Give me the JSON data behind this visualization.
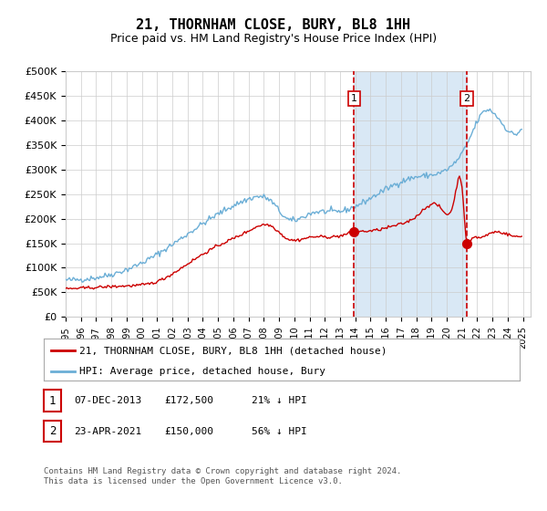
{
  "title": "21, THORNHAM CLOSE, BURY, BL8 1HH",
  "subtitle": "Price paid vs. HM Land Registry's House Price Index (HPI)",
  "legend_line1": "21, THORNHAM CLOSE, BURY, BL8 1HH (detached house)",
  "legend_line2": "HPI: Average price, detached house, Bury",
  "annotation1_label": "1",
  "annotation1_date": "07-DEC-2013",
  "annotation1_price": "£172,500",
  "annotation1_pct": "21% ↓ HPI",
  "annotation2_label": "2",
  "annotation2_date": "23-APR-2021",
  "annotation2_price": "£150,000",
  "annotation2_pct": "56% ↓ HPI",
  "footer": "Contains HM Land Registry data © Crown copyright and database right 2024.\nThis data is licensed under the Open Government Licence v3.0.",
  "hpi_color": "#6baed6",
  "price_color": "#cc0000",
  "dashed_line_color": "#cc0000",
  "shade_color": "#d9e8f5",
  "background_color": "#ffffff",
  "grid_color": "#cccccc",
  "title_fontsize": 11,
  "subtitle_fontsize": 9,
  "ylim": [
    0,
    500000
  ],
  "yticks": [
    0,
    50000,
    100000,
    150000,
    200000,
    250000,
    300000,
    350000,
    400000,
    450000,
    500000
  ],
  "xlim_start": 1995.0,
  "xlim_end": 2025.5,
  "event1_x": 2013.92,
  "event1_y": 172500,
  "event2_x": 2021.31,
  "event2_y": 150000,
  "hpi_key_years": [
    1995.0,
    1997.0,
    2000.0,
    2004.0,
    2007.0,
    2008.5,
    2009.5,
    2011.0,
    2013.0,
    2014.0,
    2016.0,
    2018.0,
    2020.0,
    2021.3,
    2022.5,
    2023.5,
    2025.0
  ],
  "hpi_key_vals": [
    75000,
    80000,
    110000,
    190000,
    240000,
    235000,
    200000,
    210000,
    215000,
    225000,
    260000,
    285000,
    300000,
    350000,
    420000,
    400000,
    390000
  ],
  "price_key_years": [
    1995.0,
    1997.0,
    1999.0,
    2001.0,
    2003.0,
    2005.0,
    2007.0,
    2008.5,
    2009.5,
    2011.0,
    2012.0,
    2013.0,
    2013.92,
    2015.0,
    2016.5,
    2018.0,
    2019.5,
    2020.5,
    2021.0,
    2021.31,
    2021.6,
    2022.0,
    2023.0,
    2024.0,
    2025.0
  ],
  "price_key_vals": [
    57000,
    60000,
    63000,
    72000,
    108000,
    145000,
    175000,
    185000,
    160000,
    162000,
    163000,
    165000,
    172500,
    175000,
    185000,
    205000,
    225000,
    240000,
    265000,
    150000,
    155000,
    162000,
    172000,
    168000,
    165000
  ]
}
